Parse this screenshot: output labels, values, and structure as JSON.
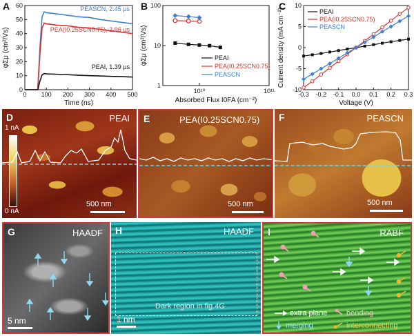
{
  "panels": {
    "A": {
      "letter": "A"
    },
    "B": {
      "letter": "B"
    },
    "C": {
      "letter": "C"
    },
    "D": {
      "letter": "D",
      "title": "PEAI",
      "scalebar": "500 nm",
      "cbar_top": "1 nA",
      "cbar_bottom": "0 nA"
    },
    "E": {
      "letter": "E",
      "title": "PEA(I0.25SCN0.75)",
      "scalebar": "500 nm"
    },
    "F": {
      "letter": "F",
      "title": "PEASCN",
      "scalebar": "500 nm"
    },
    "G": {
      "letter": "G",
      "title": "HAADF",
      "scalebar": "5 nm"
    },
    "H": {
      "letter": "H",
      "title": "HAADF",
      "scalebar": "1 nm",
      "note": "Dark region in fig.4G"
    },
    "I": {
      "letter": "I",
      "title": "RABF",
      "legend": [
        "extra plane",
        "bending",
        "merging",
        "interconnecting"
      ]
    }
  },
  "colors": {
    "PEAI": "#111111",
    "MIX": "#e0302a",
    "PEASCN": "#3a7fd0",
    "frame": "#d8343a"
  },
  "chart_data": [
    {
      "type": "line",
      "xlabel": "Time (ns)",
      "ylabel": "φΣμ (cm²/Vs)",
      "xlim": [
        0,
        500
      ],
      "ylim": [
        0,
        60
      ],
      "xticks": [
        0,
        100,
        200,
        300,
        400,
        500
      ],
      "yticks": [
        0,
        10,
        20,
        30,
        40,
        50,
        60
      ],
      "x": [
        0,
        60,
        70,
        80,
        90,
        100,
        150,
        200,
        250,
        300,
        350,
        400,
        450,
        500
      ],
      "series": [
        {
          "name": "PEASCN, 2.45 µs",
          "values": [
            0,
            0,
            30,
            52,
            55.5,
            55,
            54,
            53,
            52,
            51.5,
            50,
            49,
            48,
            47
          ]
        },
        {
          "name": "PEA(I0.25SCN0.75), 2.96 µs",
          "values": [
            0,
            0,
            25,
            44,
            47.5,
            47,
            46,
            45.5,
            44.5,
            44,
            43,
            42,
            41,
            40
          ]
        },
        {
          "name": "PEAI, 1.39 µs",
          "values": [
            0,
            0,
            6,
            10.5,
            11.5,
            11.3,
            11,
            10.7,
            10.3,
            10,
            9.8,
            9.5,
            9.3,
            9
          ]
        }
      ],
      "annotations": [
        "PEASCN, 2.45 µs",
        "PEA(I0.25SCN0.75), 2.96 µs",
        "PEAI, 1.39 µs"
      ]
    },
    {
      "type": "scatter",
      "xlabel": "Absorbed Flux I0FA (cm⁻²)",
      "ylabel": "φΣμ (cm²/Vs)",
      "xscale": "log",
      "yscale": "log",
      "xlim": [
        3000000000.0,
        100000000000.0
      ],
      "ylim": [
        1,
        100
      ],
      "xtick_labels": [
        "10¹⁰",
        "10¹¹"
      ],
      "ytick_labels": [
        "1",
        "10",
        "100"
      ],
      "legend": "bottom-right",
      "series": [
        {
          "name": "PEAI",
          "x": [
            4500000000.0,
            7000000000.0,
            10000000000.0,
            14000000000.0,
            20000000000.0
          ],
          "values": [
            11.5,
            10.7,
            10.3,
            9.9,
            9
          ]
        },
        {
          "name": "PEA(I0.25SCN0.75)",
          "x": [
            4500000000.0,
            7000000000.0,
            10000000000.0
          ],
          "values": [
            42,
            41,
            40
          ]
        },
        {
          "name": "PEASCN",
          "x": [
            4500000000.0,
            7000000000.0,
            10000000000.0
          ],
          "values": [
            56,
            53,
            50
          ]
        }
      ]
    },
    {
      "type": "line",
      "xlabel": "Voltage (V)",
      "ylabel": "Current density (mA cm⁻²)",
      "xlim": [
        -0.3,
        0.3
      ],
      "ylim": [
        -10,
        10
      ],
      "xticks": [
        -0.3,
        -0.2,
        -0.1,
        0.0,
        0.1,
        0.2,
        0.3
      ],
      "yticks": [
        -10,
        -5,
        0,
        5,
        10
      ],
      "legend": "top-left",
      "x": [
        -0.3,
        -0.25,
        -0.2,
        -0.15,
        -0.1,
        -0.05,
        0,
        0.05,
        0.1,
        0.15,
        0.2,
        0.25,
        0.3
      ],
      "series": [
        {
          "name": "PEAI",
          "values": [
            -2,
            -1.7,
            -1.4,
            -1.05,
            -0.7,
            -0.35,
            0,
            0.35,
            0.7,
            1.05,
            1.4,
            1.7,
            2
          ]
        },
        {
          "name": "PEA(I0.25SCN0.75)",
          "values": [
            -9.5,
            -8,
            -6.4,
            -4.8,
            -3.2,
            -1.6,
            0,
            1.6,
            3.2,
            4.8,
            6.4,
            8,
            9.5
          ]
        },
        {
          "name": "PEASCN",
          "values": [
            -7.5,
            -6.3,
            -5,
            -3.8,
            -2.5,
            -1.25,
            0,
            1.25,
            2.5,
            3.8,
            5,
            6.3,
            7.5
          ]
        }
      ]
    }
  ]
}
